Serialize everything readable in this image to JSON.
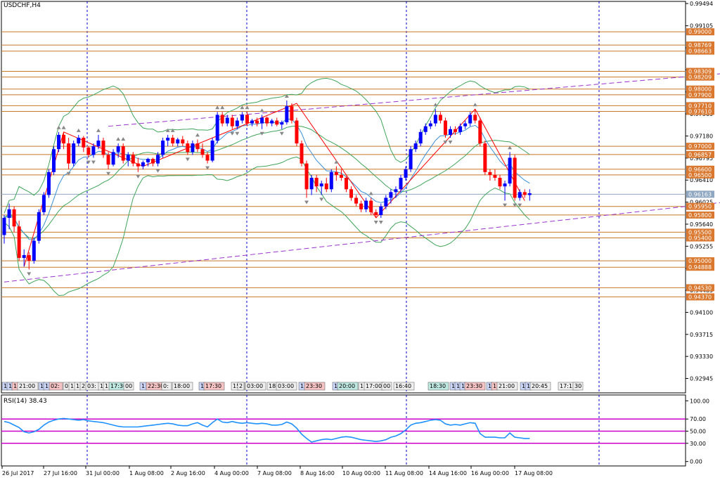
{
  "symbol_label": "USDCHF,H4",
  "rsi_label": "RSI(14) 38.43",
  "colors": {
    "bull": "#0000ff",
    "bear": "#ff0000",
    "level": "#c8782a",
    "level_label_bg": "#d9782e",
    "current_price_line": "#8fa7c0",
    "current_price_label_bg": "#8fa7c0",
    "trendline": "#9933cc",
    "bollinger": "#3fa55a",
    "ma": "#3a8fd6",
    "zigzag": "#ff0000",
    "rsi": "#1e90ff",
    "rsi_levels": "#cc00cc",
    "vline": "#0000cc",
    "axis": "#0000cc"
  },
  "chart_data": [
    {
      "type": "candlestick",
      "title": "USDCHF,H4",
      "ylim": [
        0.9289,
        0.99494
      ],
      "y_ticks": [
        "0.99494",
        "0.99105",
        "0.98720",
        "0.98335",
        "0.97950",
        "0.97565",
        "0.97180",
        "0.96795",
        "0.96410",
        "0.96025",
        "0.95640",
        "0.95255",
        "0.94870",
        "0.94485",
        "0.94100",
        "0.93715",
        "0.93330",
        "0.92945"
      ],
      "x_ticks": [
        "26 Jul 2017",
        "27 Jul 16:00",
        "31 Jul 00:00",
        "1 Aug 08:00",
        "2 Aug 16:00",
        "4 Aug 00:00",
        "7 Aug 08:00",
        "8 Aug 16:00",
        "10 Aug 00:00",
        "11 Aug 08:00",
        "14 Aug 16:00",
        "16 Aug 00:00",
        "17 Aug 08:00"
      ],
      "price_levels": [
        {
          "label": "0.99000",
          "value": 0.99
        },
        {
          "label": "0.98769",
          "value": 0.98769
        },
        {
          "label": "0.98663",
          "value": 0.98663
        },
        {
          "label": "0.98309",
          "value": 0.98309
        },
        {
          "label": "0.98209",
          "value": 0.98209
        },
        {
          "label": "0.98000",
          "value": 0.98
        },
        {
          "label": "0.97900",
          "value": 0.979
        },
        {
          "label": "0.97710",
          "value": 0.9771
        },
        {
          "label": "0.97610",
          "value": 0.9761
        },
        {
          "label": "0.97000",
          "value": 0.97
        },
        {
          "label": "0.96857",
          "value": 0.96857
        },
        {
          "label": "0.96600",
          "value": 0.966
        },
        {
          "label": "0.96500",
          "value": 0.965
        },
        {
          "label": "0.95950",
          "value": 0.9595
        },
        {
          "label": "0.95800",
          "value": 0.958
        },
        {
          "label": "0.95500",
          "value": 0.955
        },
        {
          "label": "0.95400",
          "value": 0.954
        },
        {
          "label": "0.95000",
          "value": 0.95
        },
        {
          "label": "0.94888",
          "value": 0.94888
        },
        {
          "label": "0.94530",
          "value": 0.9453
        },
        {
          "label": "0.94370",
          "value": 0.9437
        }
      ],
      "current_price": {
        "label": "0.96163",
        "value": 0.96163
      },
      "trendlines": [
        {
          "from": [
            0,
            0.9463
          ],
          "to": [
            200,
            0.9655
          ]
        },
        {
          "from": [
            21,
            0.9735
          ],
          "to": [
            200,
            0.9868
          ]
        }
      ],
      "ohlc": [
        [
          0.9545,
          0.958,
          0.953,
          0.9575
        ],
        [
          0.9575,
          0.96,
          0.9555,
          0.959
        ],
        [
          0.959,
          0.9595,
          0.955,
          0.956
        ],
        [
          0.956,
          0.957,
          0.95,
          0.9505
        ],
        [
          0.9505,
          0.952,
          0.949,
          0.951
        ],
        [
          0.951,
          0.9515,
          0.9485,
          0.95
        ],
        [
          0.95,
          0.954,
          0.9495,
          0.9535
        ],
        [
          0.9535,
          0.959,
          0.953,
          0.9585
        ],
        [
          0.9585,
          0.962,
          0.958,
          0.9615
        ],
        [
          0.9615,
          0.966,
          0.961,
          0.9655
        ],
        [
          0.9655,
          0.97,
          0.965,
          0.9695
        ],
        [
          0.9695,
          0.9725,
          0.969,
          0.972
        ],
        [
          0.972,
          0.9725,
          0.9695,
          0.9705
        ],
        [
          0.9705,
          0.9715,
          0.966,
          0.967
        ],
        [
          0.967,
          0.971,
          0.9665,
          0.9705
        ],
        [
          0.9705,
          0.972,
          0.97,
          0.9715
        ],
        [
          0.9715,
          0.9718,
          0.969,
          0.9698
        ],
        [
          0.9698,
          0.97,
          0.968,
          0.9685
        ],
        [
          0.9685,
          0.9705,
          0.968,
          0.97
        ],
        [
          0.97,
          0.972,
          0.9695,
          0.971
        ],
        [
          0.971,
          0.9715,
          0.968,
          0.9685
        ],
        [
          0.9685,
          0.969,
          0.966,
          0.9668
        ],
        [
          0.9668,
          0.9695,
          0.9665,
          0.969
        ],
        [
          0.969,
          0.9705,
          0.968,
          0.97
        ],
        [
          0.97,
          0.9705,
          0.967,
          0.9675
        ],
        [
          0.9675,
          0.969,
          0.9665,
          0.9685
        ],
        [
          0.9685,
          0.969,
          0.9665,
          0.967
        ],
        [
          0.967,
          0.968,
          0.9655,
          0.9665
        ],
        [
          0.9665,
          0.9675,
          0.966,
          0.9672
        ],
        [
          0.9672,
          0.968,
          0.9665,
          0.9678
        ],
        [
          0.9678,
          0.968,
          0.9665,
          0.967
        ],
        [
          0.967,
          0.969,
          0.9665,
          0.9685
        ],
        [
          0.9685,
          0.9715,
          0.968,
          0.971
        ],
        [
          0.971,
          0.972,
          0.97,
          0.9715
        ],
        [
          0.9715,
          0.972,
          0.97,
          0.9705
        ],
        [
          0.9705,
          0.9715,
          0.97,
          0.9712
        ],
        [
          0.9712,
          0.9718,
          0.97,
          0.9705
        ],
        [
          0.9705,
          0.971,
          0.9685,
          0.969
        ],
        [
          0.969,
          0.971,
          0.9685,
          0.9705
        ],
        [
          0.9705,
          0.9712,
          0.969,
          0.9695
        ],
        [
          0.9695,
          0.9705,
          0.968,
          0.9685
        ],
        [
          0.9685,
          0.969,
          0.967,
          0.9675
        ],
        [
          0.9675,
          0.9715,
          0.9672,
          0.971
        ],
        [
          0.971,
          0.976,
          0.9705,
          0.9755
        ],
        [
          0.9755,
          0.976,
          0.9735,
          0.974
        ],
        [
          0.974,
          0.9755,
          0.9735,
          0.975
        ],
        [
          0.975,
          0.9755,
          0.973,
          0.9735
        ],
        [
          0.9735,
          0.975,
          0.973,
          0.9745
        ],
        [
          0.9745,
          0.976,
          0.974,
          0.9755
        ],
        [
          0.9755,
          0.976,
          0.9735,
          0.974
        ],
        [
          0.974,
          0.9748,
          0.9735,
          0.9745
        ],
        [
          0.9745,
          0.975,
          0.9735,
          0.974
        ],
        [
          0.974,
          0.9755,
          0.973,
          0.975
        ],
        [
          0.975,
          0.9752,
          0.9735,
          0.974
        ],
        [
          0.974,
          0.9748,
          0.9735,
          0.9745
        ],
        [
          0.9745,
          0.975,
          0.9735,
          0.9738
        ],
        [
          0.9738,
          0.9745,
          0.973,
          0.9742
        ],
        [
          0.9742,
          0.978,
          0.9738,
          0.977
        ],
        [
          0.977,
          0.9775,
          0.974,
          0.9745
        ],
        [
          0.9745,
          0.975,
          0.97,
          0.9705
        ],
        [
          0.9705,
          0.971,
          0.9665,
          0.967
        ],
        [
          0.967,
          0.9675,
          0.961,
          0.9625
        ],
        [
          0.9625,
          0.965,
          0.9615,
          0.9645
        ],
        [
          0.9645,
          0.965,
          0.962,
          0.963
        ],
        [
          0.963,
          0.964,
          0.9615,
          0.9635
        ],
        [
          0.9635,
          0.9645,
          0.962,
          0.9625
        ],
        [
          0.9625,
          0.966,
          0.962,
          0.9655
        ],
        [
          0.9655,
          0.9665,
          0.964,
          0.965
        ],
        [
          0.965,
          0.966,
          0.964,
          0.9645
        ],
        [
          0.9645,
          0.9648,
          0.962,
          0.9625
        ],
        [
          0.9625,
          0.963,
          0.9605,
          0.961
        ],
        [
          0.961,
          0.9615,
          0.9595,
          0.96
        ],
        [
          0.96,
          0.9605,
          0.9585,
          0.959
        ],
        [
          0.959,
          0.961,
          0.9585,
          0.9605
        ],
        [
          0.9605,
          0.961,
          0.958,
          0.9585
        ],
        [
          0.9585,
          0.959,
          0.9575,
          0.958
        ],
        [
          0.958,
          0.96,
          0.9575,
          0.9595
        ],
        [
          0.9595,
          0.9615,
          0.959,
          0.961
        ],
        [
          0.961,
          0.9625,
          0.96,
          0.962
        ],
        [
          0.962,
          0.963,
          0.961,
          0.9625
        ],
        [
          0.9625,
          0.965,
          0.962,
          0.9645
        ],
        [
          0.9645,
          0.9665,
          0.964,
          0.966
        ],
        [
          0.966,
          0.97,
          0.9655,
          0.9695
        ],
        [
          0.9695,
          0.971,
          0.969,
          0.9705
        ],
        [
          0.9705,
          0.973,
          0.97,
          0.9725
        ],
        [
          0.9725,
          0.974,
          0.972,
          0.9735
        ],
        [
          0.9735,
          0.9745,
          0.973,
          0.974
        ],
        [
          0.974,
          0.9765,
          0.9735,
          0.9755
        ],
        [
          0.9755,
          0.976,
          0.974,
          0.9745
        ],
        [
          0.9745,
          0.975,
          0.9715,
          0.972
        ],
        [
          0.972,
          0.9735,
          0.9715,
          0.973
        ],
        [
          0.973,
          0.9735,
          0.972,
          0.9725
        ],
        [
          0.9725,
          0.974,
          0.972,
          0.9735
        ],
        [
          0.9735,
          0.9745,
          0.973,
          0.974
        ],
        [
          0.974,
          0.976,
          0.9735,
          0.9755
        ],
        [
          0.9755,
          0.9765,
          0.974,
          0.9745
        ],
        [
          0.9745,
          0.975,
          0.97,
          0.9705
        ],
        [
          0.9705,
          0.971,
          0.965,
          0.9655
        ],
        [
          0.9655,
          0.966,
          0.964,
          0.965
        ],
        [
          0.965,
          0.966,
          0.964,
          0.9645
        ],
        [
          0.9645,
          0.965,
          0.9625,
          0.963
        ],
        [
          0.963,
          0.964,
          0.9605,
          0.9635
        ],
        [
          0.9635,
          0.969,
          0.963,
          0.968
        ],
        [
          0.968,
          0.9685,
          0.9605,
          0.961
        ],
        [
          0.961,
          0.9625,
          0.9605,
          0.962
        ],
        [
          0.962,
          0.9625,
          0.961,
          0.9615
        ],
        [
          0.9615,
          0.9625,
          0.9605,
          0.9618
        ]
      ]
    },
    {
      "type": "line",
      "title": "RSI(14) 38.43",
      "ylim": [
        -5,
        105
      ],
      "y_ticks": [
        "100.00",
        "70.00",
        "50.00",
        "30.00",
        "0.00"
      ],
      "levels": [
        70,
        50,
        30
      ],
      "values": [
        66,
        64,
        60,
        56,
        49,
        47,
        49,
        53,
        60,
        65,
        68,
        70,
        71,
        70,
        69,
        68,
        69,
        67,
        66,
        65,
        64,
        62,
        60,
        58,
        57,
        57,
        57,
        57,
        58,
        59,
        60,
        61,
        62,
        63,
        62,
        60,
        59,
        59,
        62,
        64,
        60,
        57,
        64,
        70,
        65,
        64,
        66,
        64,
        63,
        64,
        63,
        62,
        63,
        62,
        60,
        60,
        61,
        65,
        62,
        55,
        45,
        38,
        32,
        34,
        36,
        37,
        36,
        38,
        40,
        41,
        40,
        38,
        36,
        35,
        34,
        33,
        34,
        36,
        40,
        42,
        46,
        52,
        60,
        63,
        64,
        66,
        68,
        69,
        68,
        62,
        60,
        61,
        60,
        62,
        64,
        63,
        46,
        40,
        40,
        40,
        39,
        39,
        47,
        40,
        39,
        38,
        38
      ]
    }
  ],
  "session_tags": [
    {
      "text": "1",
      "tone": "blue"
    },
    {
      "text": "1",
      "tone": "blue"
    },
    {
      "text": "1",
      "tone": "red"
    },
    {
      "text": "21:00",
      "tone": "gray"
    },
    {
      "text": "1",
      "tone": "blue"
    },
    {
      "text": "1",
      "tone": "blue"
    },
    {
      "text": "02:",
      "tone": "red"
    },
    {
      "text": "0",
      "tone": "gray"
    },
    {
      "text": "1",
      "tone": "gray"
    },
    {
      "text": "1",
      "tone": "gray"
    },
    {
      "text": "2",
      "tone": "gray"
    },
    {
      "text": "03:",
      "tone": "gray"
    },
    {
      "text": "1",
      "tone": "gray"
    },
    {
      "text": "1",
      "tone": "gray"
    },
    {
      "text": "17:30",
      "tone": "teal"
    },
    {
      "text": "00",
      "tone": "gray"
    },
    {
      "text": "1",
      "tone": "blue"
    },
    {
      "text": "22:30",
      "tone": "red"
    },
    {
      "text": "0:",
      "tone": "gray"
    },
    {
      "text": "18:00",
      "tone": "gray"
    },
    {
      "text": "1",
      "tone": "blue"
    },
    {
      "text": "17:30",
      "tone": "red"
    },
    {
      "text": "15:",
      "tone": "gray"
    },
    {
      "text": "2",
      "tone": "gray"
    },
    {
      "text": "03:00",
      "tone": "gray"
    },
    {
      "text": "18:",
      "tone": "gray"
    },
    {
      "text": "03:00",
      "tone": "gray"
    },
    {
      "text": "1",
      "tone": "blue"
    },
    {
      "text": "23:30",
      "tone": "red"
    },
    {
      "text": "1",
      "tone": "blue"
    },
    {
      "text": "20:00",
      "tone": "teal"
    },
    {
      "text": "1",
      "tone": "gray"
    },
    {
      "text": "17:00",
      "tone": "gray"
    },
    {
      "text": "00",
      "tone": "gray"
    },
    {
      "text": "16:40",
      "tone": "gray"
    },
    {
      "text": "18:30",
      "tone": "teal"
    },
    {
      "text": "1",
      "tone": "blue"
    },
    {
      "text": "1",
      "tone": "blue"
    },
    {
      "text": "1",
      "tone": "blue"
    },
    {
      "text": "23:30",
      "tone": "red"
    },
    {
      "text": "1",
      "tone": "blue"
    },
    {
      "text": "1",
      "tone": "red"
    },
    {
      "text": "21:00",
      "tone": "gray"
    },
    {
      "text": "1",
      "tone": "blue"
    },
    {
      "text": "1",
      "tone": "blue"
    },
    {
      "text": "20:45",
      "tone": "gray"
    },
    {
      "text": "17:15",
      "tone": "gray"
    },
    {
      "text": "30",
      "tone": "gray"
    }
  ]
}
